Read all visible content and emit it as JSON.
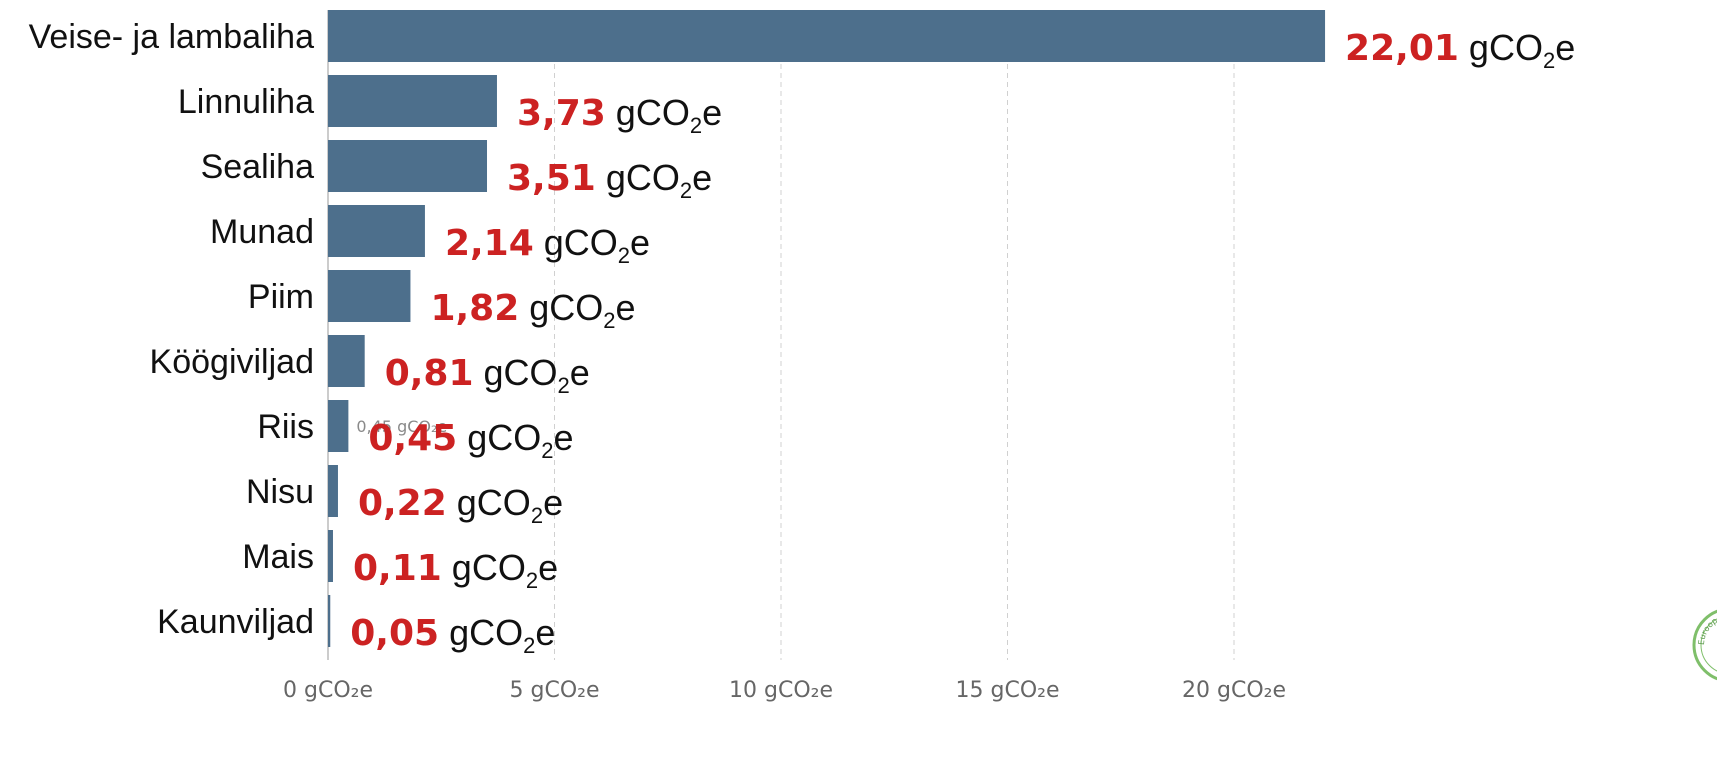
{
  "chart_data": {
    "type": "bar",
    "orientation": "horizontal",
    "categories": [
      "Veise- ja lambaliha",
      "Linnuliha",
      "Sealiha",
      "Munad",
      "Piim",
      "Köögiviljad",
      "Riis",
      "Nisu",
      "Mais",
      "Kaunviljad"
    ],
    "values": [
      22.01,
      3.73,
      3.51,
      2.14,
      1.82,
      0.81,
      0.45,
      0.22,
      0.11,
      0.05
    ],
    "value_labels": [
      "22,01",
      "3,73",
      "3,51",
      "2,14",
      "1,82",
      "0,81",
      "0,45",
      "0,22",
      "0,11",
      "0,05"
    ],
    "unit_main": "gCO",
    "unit_sub": "2",
    "unit_tail": "e",
    "ghost_label": "0,45 gCO₂e",
    "x_ticks": [
      0,
      5,
      10,
      15,
      20
    ],
    "x_tick_labels": [
      "0 gCO₂e",
      "5 gCO₂e",
      "10 gCO₂e",
      "15 gCO₂e",
      "20 gCO₂e"
    ],
    "xlim": [
      0,
      22.01
    ],
    "title": "",
    "xlabel": "",
    "ylabel": "",
    "grid": "vertical-dashed",
    "legend": "none"
  },
  "colors": {
    "bar": "#4d6f8c",
    "value_number": "#cc2222",
    "grid": "#d0d0d0",
    "axis": "#bbbbbb",
    "logo": "#7fbf6a"
  },
  "logo": {
    "icon": "circular-seal-icon",
    "text": "Euroopa Liit"
  }
}
